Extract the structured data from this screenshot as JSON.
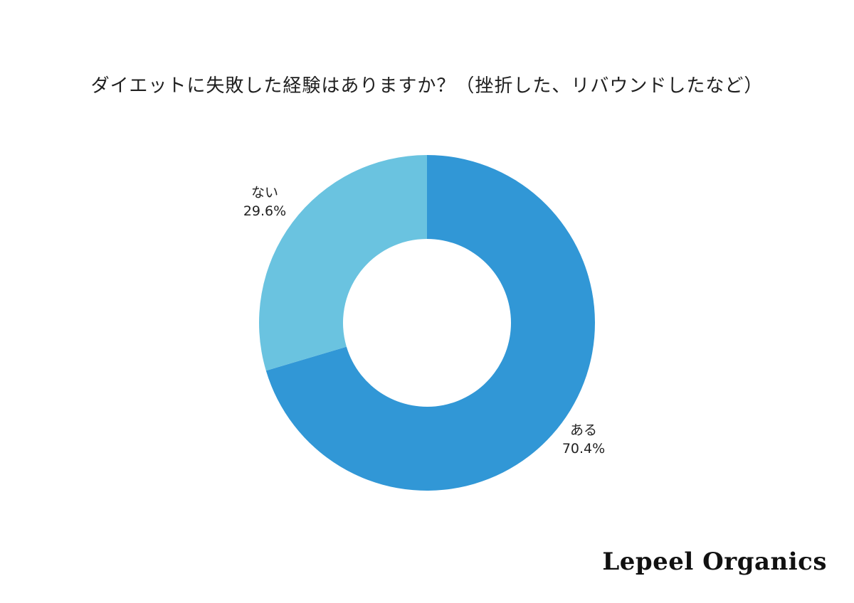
{
  "chart_data": {
    "type": "pie",
    "title": "ダイエットに失敗した経験はありますか？（挫折した、リバウンドしたなど）",
    "slices": [
      {
        "label": "ある",
        "value": 70.4,
        "display": "70.4%",
        "color": "#3197d6"
      },
      {
        "label": "ない",
        "value": 29.6,
        "display": "29.6%",
        "color": "#6ac3e0"
      }
    ],
    "donut": true,
    "start": "12 o'clock, clockwise"
  },
  "brand": {
    "name": "Lepeel Organics"
  }
}
